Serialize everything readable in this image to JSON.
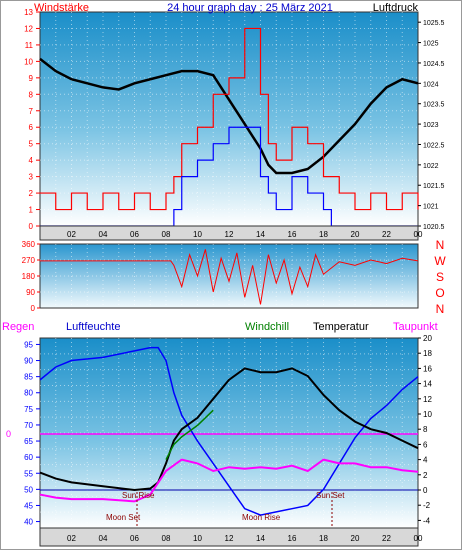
{
  "header": {
    "left_label": "Windstärke",
    "title": "24 hour graph day : 25 März 2021",
    "right_label": "Luftdruck"
  },
  "colors": {
    "red": "#ff0000",
    "blue": "#0000ff",
    "black": "#000000",
    "magenta": "#ff00ff",
    "green": "#008000",
    "darkred": "#8b0000",
    "title_blue": "#0000cc"
  },
  "compass": [
    "N",
    "W",
    "S",
    "O",
    "N"
  ],
  "bottom_headers": {
    "regen": "Regen",
    "luftfeuchte": "Luftfeuchte",
    "windchill": "Windchill",
    "temperatur": "Temperatur",
    "taupunkt": "Taupunkt"
  },
  "annotations": {
    "sun_rise": "Sun Rise",
    "sun_set": "Sun Set",
    "moon_set": "Moon Set",
    "moon_rise": "Moon Rise",
    "regen_zero": "0"
  },
  "chart_data": [
    {
      "type": "line",
      "x_unit": "hour",
      "xlim": [
        0,
        24
      ],
      "x_ticks": [
        "02",
        "04",
        "06",
        "08",
        "10",
        "12",
        "14",
        "16",
        "18",
        "20",
        "22",
        "00"
      ],
      "y_left": {
        "range": [
          0,
          13
        ],
        "ticks": [
          "0",
          "1",
          "2",
          "3",
          "4",
          "5",
          "6",
          "7",
          "8",
          "9",
          "10",
          "11",
          "12",
          "13"
        ]
      },
      "y_right": {
        "range": [
          1020.5,
          1025.75
        ],
        "ticks": [
          "1020.5",
          "1021",
          "1021.5",
          "1022",
          "1022.5",
          "1023",
          "1023.5",
          "1024",
          "1024.5",
          "1025",
          "1025.5"
        ]
      },
      "series": [
        {
          "name": "Luftdruck",
          "axis": "right",
          "points": [
            [
              0,
              1024.6
            ],
            [
              1,
              1024.3
            ],
            [
              2,
              1024.1
            ],
            [
              3,
              1024.0
            ],
            [
              4,
              1023.9
            ],
            [
              5,
              1023.85
            ],
            [
              6,
              1024.0
            ],
            [
              7,
              1024.1
            ],
            [
              8,
              1024.2
            ],
            [
              9,
              1024.3
            ],
            [
              10,
              1024.3
            ],
            [
              11,
              1024.2
            ],
            [
              12,
              1023.6
            ],
            [
              13,
              1023.0
            ],
            [
              14,
              1022.4
            ],
            [
              14.5,
              1022.0
            ],
            [
              15,
              1021.8
            ],
            [
              16,
              1021.8
            ],
            [
              17,
              1021.9
            ],
            [
              18,
              1022.2
            ],
            [
              19,
              1022.6
            ],
            [
              20,
              1023.0
            ],
            [
              21,
              1023.5
            ],
            [
              22,
              1023.9
            ],
            [
              23,
              1024.1
            ],
            [
              24,
              1024.0
            ]
          ]
        },
        {
          "name": "Böen",
          "axis": "left",
          "points": [
            [
              0,
              2
            ],
            [
              1,
              1
            ],
            [
              2,
              2
            ],
            [
              3,
              1
            ],
            [
              4,
              2
            ],
            [
              5,
              1
            ],
            [
              6,
              2
            ],
            [
              7,
              1
            ],
            [
              8,
              2
            ],
            [
              8.5,
              3
            ],
            [
              9,
              5
            ],
            [
              10,
              6
            ],
            [
              11,
              8
            ],
            [
              12,
              9
            ],
            [
              13,
              12
            ],
            [
              14,
              8
            ],
            [
              14.5,
              5
            ],
            [
              15,
              4
            ],
            [
              16,
              6
            ],
            [
              17,
              5
            ],
            [
              18,
              3
            ],
            [
              19,
              2
            ],
            [
              20,
              1
            ],
            [
              21,
              2
            ],
            [
              22,
              1
            ],
            [
              23,
              2
            ],
            [
              24,
              1
            ]
          ]
        },
        {
          "name": "Wind",
          "axis": "left",
          "points": [
            [
              0,
              0
            ],
            [
              8,
              0
            ],
            [
              8.5,
              1
            ],
            [
              9,
              3
            ],
            [
              10,
              4
            ],
            [
              11,
              5
            ],
            [
              12,
              6
            ],
            [
              13,
              6
            ],
            [
              14,
              3
            ],
            [
              14.5,
              2
            ],
            [
              15,
              1
            ],
            [
              16,
              3
            ],
            [
              17,
              2
            ],
            [
              18,
              1
            ],
            [
              18.5,
              0
            ],
            [
              24,
              0
            ]
          ]
        }
      ]
    },
    {
      "type": "line",
      "x_unit": "hour",
      "xlim": [
        0,
        24
      ],
      "y_left": {
        "range": [
          0,
          360
        ],
        "ticks": [
          "0",
          "90",
          "180",
          "270",
          "360"
        ]
      },
      "series": [
        {
          "name": "Windrichtung",
          "points": [
            [
              0,
              265
            ],
            [
              8.3,
              265
            ],
            [
              8.5,
              240
            ],
            [
              9,
              120
            ],
            [
              9.5,
              300
            ],
            [
              10,
              180
            ],
            [
              10.5,
              330
            ],
            [
              11,
              90
            ],
            [
              11.5,
              280
            ],
            [
              12,
              150
            ],
            [
              12.5,
              310
            ],
            [
              13,
              60
            ],
            [
              13.5,
              240
            ],
            [
              14,
              20
            ],
            [
              14.5,
              300
            ],
            [
              15,
              140
            ],
            [
              15.5,
              270
            ],
            [
              16,
              80
            ],
            [
              16.5,
              230
            ],
            [
              17,
              120
            ],
            [
              17.5,
              300
            ],
            [
              18,
              190
            ],
            [
              19,
              260
            ],
            [
              20,
              240
            ],
            [
              21,
              270
            ],
            [
              22,
              250
            ],
            [
              23,
              280
            ],
            [
              24,
              265
            ]
          ]
        }
      ]
    },
    {
      "type": "line",
      "x_unit": "hour",
      "xlim": [
        0,
        24
      ],
      "y_left": {
        "range": [
          38,
          97
        ],
        "ticks": [
          "40",
          "45",
          "50",
          "55",
          "60",
          "65",
          "70",
          "75",
          "80",
          "85",
          "90",
          "95"
        ]
      },
      "y_right": {
        "range": [
          -5,
          20
        ],
        "ticks": [
          "-4",
          "-2",
          "0",
          "2",
          "4",
          "6",
          "8",
          "10",
          "12",
          "14",
          "16",
          "18",
          "20"
        ]
      },
      "series": [
        {
          "name": "Luftfeuchte",
          "axis": "left",
          "points": [
            [
              0,
              84
            ],
            [
              1,
              88
            ],
            [
              2,
              90
            ],
            [
              4,
              91
            ],
            [
              6,
              93
            ],
            [
              7,
              94
            ],
            [
              7.5,
              94
            ],
            [
              8,
              90
            ],
            [
              8.5,
              80
            ],
            [
              9,
              73
            ],
            [
              10,
              65
            ],
            [
              11,
              58
            ],
            [
              12,
              51
            ],
            [
              13,
              44
            ],
            [
              14,
              42
            ],
            [
              15,
              43
            ],
            [
              16,
              44
            ],
            [
              17,
              45
            ],
            [
              18,
              50
            ],
            [
              19,
              58
            ],
            [
              20,
              66
            ],
            [
              21,
              72
            ],
            [
              22,
              76
            ],
            [
              23,
              81
            ],
            [
              24,
              85
            ]
          ]
        },
        {
          "name": "Temperatur",
          "axis": "right",
          "points": [
            [
              0,
              2.3
            ],
            [
              1,
              1.5
            ],
            [
              2,
              1.0
            ],
            [
              4,
              0.5
            ],
            [
              6,
              0.0
            ],
            [
              7,
              0.2
            ],
            [
              7.5,
              1.0
            ],
            [
              8,
              3.5
            ],
            [
              8.5,
              6.5
            ],
            [
              9,
              8.0
            ],
            [
              10,
              9.5
            ],
            [
              11,
              12.0
            ],
            [
              12,
              14.5
            ],
            [
              13,
              16.0
            ],
            [
              14,
              15.5
            ],
            [
              15,
              15.5
            ],
            [
              16,
              16.0
            ],
            [
              17,
              15.0
            ],
            [
              18,
              12.5
            ],
            [
              19,
              10.5
            ],
            [
              20,
              9.0
            ],
            [
              21,
              8.0
            ],
            [
              22,
              7.5
            ],
            [
              23,
              6.5
            ],
            [
              24,
              5.5
            ]
          ]
        },
        {
          "name": "Windchill",
          "axis": "right",
          "points": [
            [
              8,
              4.0
            ],
            [
              8.5,
              6.0
            ],
            [
              9,
              7.0
            ],
            [
              10,
              8.5
            ],
            [
              11,
              10.5
            ]
          ]
        },
        {
          "name": "Taupunkt",
          "axis": "right",
          "points": [
            [
              0,
              -0.6
            ],
            [
              1,
              -1.0
            ],
            [
              2,
              -1.2
            ],
            [
              4,
              -1.2
            ],
            [
              6,
              -1.5
            ],
            [
              7,
              -0.6
            ],
            [
              8,
              2.5
            ],
            [
              9,
              4.0
            ],
            [
              10,
              3.5
            ],
            [
              11,
              2.5
            ],
            [
              12,
              3.0
            ],
            [
              13,
              2.8
            ],
            [
              14,
              3.0
            ],
            [
              15,
              2.8
            ],
            [
              16,
              3.2
            ],
            [
              17,
              2.5
            ],
            [
              18,
              4.0
            ],
            [
              19,
              3.5
            ],
            [
              20,
              3.5
            ],
            [
              21,
              3.0
            ],
            [
              22,
              3.0
            ],
            [
              23,
              2.6
            ],
            [
              24,
              2.4
            ]
          ]
        }
      ]
    }
  ]
}
